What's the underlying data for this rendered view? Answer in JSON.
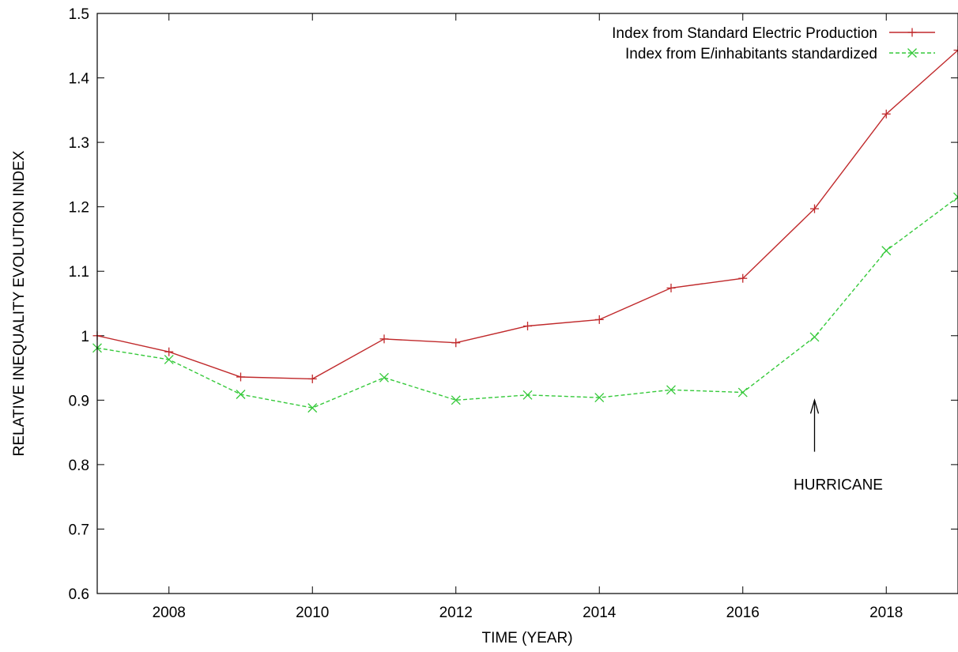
{
  "chart_data": {
    "type": "line",
    "title": "",
    "xlabel": "TIME (YEAR)",
    "ylabel": "RELATIVE INEQUALITY EVOLUTION INDEX",
    "xlim": [
      2007,
      2019
    ],
    "ylim": [
      0.6,
      1.5
    ],
    "xticks": [
      2008,
      2010,
      2012,
      2014,
      2016,
      2018
    ],
    "yticks": [
      0.6,
      0.7,
      0.8,
      0.9,
      1.0,
      1.1,
      1.2,
      1.3,
      1.4,
      1.5
    ],
    "ytick_labels": [
      "0.6",
      "0.7",
      "0.8",
      "0.9",
      "1",
      "1.1",
      "1.2",
      "1.3",
      "1.4",
      "1.5"
    ],
    "grid": false,
    "legend_position": "top-right",
    "x": [
      2007,
      2008,
      2009,
      2010,
      2011,
      2012,
      2013,
      2014,
      2015,
      2016,
      2017,
      2018,
      2019
    ],
    "series": [
      {
        "name": "Index from Standard Electric Production",
        "color": "#c0292b",
        "dash": "solid",
        "marker": "plus",
        "values": [
          1.0,
          0.975,
          0.936,
          0.933,
          0.995,
          0.989,
          1.015,
          1.025,
          1.074,
          1.089,
          1.197,
          1.344,
          1.443
        ]
      },
      {
        "name": "Index from E/inhabitants standardized",
        "color": "#35c93a",
        "dash": "dashed",
        "marker": "cross",
        "values": [
          0.981,
          0.963,
          0.909,
          0.888,
          0.935,
          0.9,
          0.908,
          0.904,
          0.916,
          0.912,
          0.998,
          1.132,
          1.215
        ]
      }
    ],
    "annotations": [
      {
        "text": "HURRICANE",
        "x": 2017,
        "arrow_from_y": 0.82,
        "arrow_to_y": 0.9
      }
    ]
  }
}
